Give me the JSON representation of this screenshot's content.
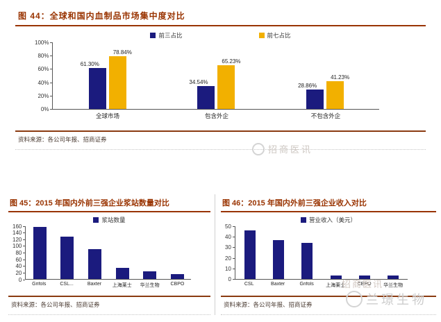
{
  "page": {
    "accent_color": "#993300",
    "rule_color": "#8a3a10",
    "bar_navy": "#1b1b7e",
    "bar_gold": "#f2b000",
    "watermark_color": "#cccccc"
  },
  "figures": [
    {
      "title": "图 44：全球和国内血制品市场集中度对比",
      "source": "资料来源：各公司年报、招商证券"
    },
    {
      "title": "图 45：2015 年国内外前三强企业浆站数量对比",
      "source": "资料来源：各公司年报、招商证券"
    },
    {
      "title": "图 46：2015 年国内外前三强企业收入对比",
      "source": "资料来源：各公司年报、招商证券"
    }
  ],
  "watermarks": {
    "brand1": "招商医讯",
    "brand2": "兰璟生物"
  },
  "chart_data": [
    {
      "type": "bar",
      "title": "全球和国内血制品市场集中度对比",
      "categories": [
        "全球市场",
        "包含外企",
        "不包含外企"
      ],
      "series": [
        {
          "name": "前三占比",
          "color": "#1b1b7e",
          "values": [
            61.3,
            34.54,
            28.86
          ]
        },
        {
          "name": "前七占比",
          "color": "#f2b000",
          "values": [
            78.84,
            65.23,
            41.23
          ]
        }
      ],
      "data_labels": [
        [
          "61.30%",
          "34.54%",
          "28.86%"
        ],
        [
          "78.84%",
          "65.23%",
          "41.23%"
        ]
      ],
      "ylim": [
        0,
        100
      ],
      "yticks": [
        "0%",
        "20%",
        "40%",
        "60%",
        "80%",
        "100%"
      ],
      "legend_position": "top",
      "grid": false
    },
    {
      "type": "bar",
      "title": "2015 年国内外前三强企业浆站数量对比",
      "categories": [
        "Grifols",
        "CSL...",
        "Baxter",
        "上海莱士",
        "华兰生物",
        "CBPO"
      ],
      "series": [
        {
          "name": "浆站数量",
          "color": "#1b1b7e",
          "values": [
            158,
            128,
            90,
            33,
            23,
            15
          ]
        }
      ],
      "ylim": [
        0,
        160
      ],
      "yticks": [
        "0",
        "20",
        "40",
        "60",
        "80",
        "100",
        "120",
        "140",
        "160"
      ],
      "legend_position": "top",
      "grid": false
    },
    {
      "type": "bar",
      "title": "2015 年国内外前三强企业收入对比",
      "categories": [
        "CSL",
        "Baxter",
        "Grifols",
        "上海莱士",
        "CBPO",
        "华兰生物"
      ],
      "series": [
        {
          "name": "营业收入（美元）",
          "color": "#1b1b7e",
          "values": [
            46,
            37,
            34,
            3,
            3,
            3
          ]
        }
      ],
      "ylim": [
        0,
        50
      ],
      "yticks": [
        "0",
        "10",
        "20",
        "30",
        "40",
        "50"
      ],
      "legend_position": "top",
      "grid": false
    }
  ]
}
